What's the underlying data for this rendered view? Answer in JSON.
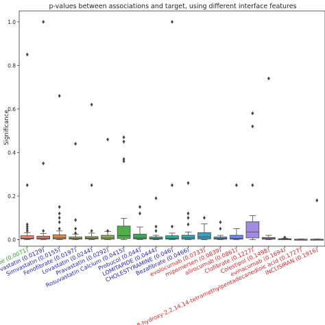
{
  "chart_data": {
    "type": "box",
    "title": "p-values between associations and target, using different interface features",
    "xlabel": "",
    "ylabel": "Significance",
    "ylim": [
      -0.03,
      1.05
    ],
    "yticks": [
      0.0,
      0.2,
      0.4,
      0.6,
      0.8,
      1.0
    ],
    "ytick_labels": [
      "0.0",
      "0.2",
      "0.4",
      "0.6",
      "0.8",
      "1.0"
    ],
    "grid": false,
    "categories": [
      {
        "label": "Ezetimibe (0.0071)",
        "color": "#2ca02c",
        "fill": "#e8866f",
        "box": {
          "q1": 0.003,
          "median": 0.006,
          "q3": 0.018,
          "wmin": 0.0,
          "wmax": 0.032
        },
        "outliers": [
          0.04,
          0.05,
          0.06,
          0.07,
          0.25,
          0.85
        ]
      },
      {
        "label": "Atorvastatin (0.0129)",
        "color": "#1f1fbf",
        "fill": "#e8866f",
        "box": {
          "q1": 0.002,
          "median": 0.007,
          "q3": 0.016,
          "wmin": 0.0,
          "wmax": 0.028
        },
        "outliers": [
          0.04,
          0.35,
          1.0
        ]
      },
      {
        "label": "Simvastatin (0.0155)",
        "color": "#1f1fbf",
        "fill": "#d9874f",
        "box": {
          "q1": 0.003,
          "median": 0.008,
          "q3": 0.022,
          "wmin": 0.0,
          "wmax": 0.04
        },
        "outliers": [
          0.05,
          0.08,
          0.1,
          0.12,
          0.15,
          0.66
        ]
      },
      {
        "label": "Fenofibrate (0.0197)",
        "color": "#1f1fbf",
        "fill": "#b0a35a",
        "box": {
          "q1": 0.002,
          "median": 0.006,
          "q3": 0.012,
          "wmin": 0.0,
          "wmax": 0.025
        },
        "outliers": [
          0.03,
          0.05,
          0.09,
          0.44
        ]
      },
      {
        "label": "Lovastatin (0.0244)",
        "color": "#1f1fbf",
        "fill": "#a3a85a",
        "box": {
          "q1": 0.003,
          "median": 0.007,
          "q3": 0.014,
          "wmin": 0.0,
          "wmax": 0.03
        },
        "outliers": [
          0.04,
          0.25,
          0.62
        ]
      },
      {
        "label": "Pravastatin (0.0292)",
        "color": "#1f1fbf",
        "fill": "#8fae57",
        "box": {
          "q1": 0.002,
          "median": 0.008,
          "q3": 0.02,
          "wmin": 0.0,
          "wmax": 0.038
        },
        "outliers": [
          0.04,
          0.46
        ]
      },
      {
        "label": "Rosuvastatin Calcium (0.0415)",
        "color": "#1f1fbf",
        "fill": "#4fb04a",
        "box": {
          "q1": 0.005,
          "median": 0.018,
          "q3": 0.062,
          "wmin": 0.0,
          "wmax": 0.098
        },
        "outliers": [
          0.36,
          0.37,
          0.45,
          0.47
        ]
      },
      {
        "label": "Probucol (0.044)",
        "color": "#1f1fbf",
        "fill": "#3aa858",
        "box": {
          "q1": 0.003,
          "median": 0.008,
          "q3": 0.025,
          "wmin": 0.0,
          "wmax": 0.058
        },
        "outliers": [
          0.12,
          0.15
        ]
      },
      {
        "label": "LOMITAPIDE (0.0444)",
        "color": "#1f1fbf",
        "fill": "#3aa88a",
        "box": {
          "q1": 0.002,
          "median": 0.005,
          "q3": 0.012,
          "wmin": 0.0,
          "wmax": 0.02
        },
        "outliers": [
          0.04,
          0.06,
          0.19
        ]
      },
      {
        "label": "CHOLESTYRAMINE (0.046)",
        "color": "#1f1fbf",
        "fill": "#3aa6a0",
        "box": {
          "q1": 0.002,
          "median": 0.006,
          "q3": 0.018,
          "wmin": 0.0,
          "wmax": 0.03
        },
        "outliers": [
          0.06,
          0.25,
          1.0
        ]
      },
      {
        "label": "Bezafibrate (0.0466)",
        "color": "#1f1fbf",
        "fill": "#38a8b0",
        "box": {
          "q1": 0.002,
          "median": 0.008,
          "q3": 0.02,
          "wmin": 0.0,
          "wmax": 0.035
        },
        "outliers": [
          0.07,
          0.1,
          0.12,
          0.26
        ]
      },
      {
        "label": "evolocumab (0.0733)",
        "color": "#d62728",
        "fill": "#3a9fc0",
        "box": {
          "q1": 0.003,
          "median": 0.012,
          "q3": 0.032,
          "wmin": 0.0,
          "wmax": 0.072
        },
        "outliers": [
          0.1
        ]
      },
      {
        "label": "mipomersen (0.0839)",
        "color": "#d62728",
        "fill": "#4d8fd0",
        "box": {
          "q1": 0.002,
          "median": 0.005,
          "q3": 0.012,
          "wmin": 0.0,
          "wmax": 0.02
        },
        "outliers": [
          0.05,
          0.08
        ]
      },
      {
        "label": "alirocumab (0.0861)",
        "color": "#d62728",
        "fill": "#6e8fdf",
        "box": {
          "q1": 0.002,
          "median": 0.006,
          "q3": 0.02,
          "wmin": 0.0,
          "wmax": 0.05
        },
        "outliers": [
          0.25
        ]
      },
      {
        "label": "Clofibrate (0.1227)",
        "color": "#d62728",
        "fill": "#a08de0",
        "box": {
          "q1": 0.008,
          "median": 0.035,
          "q3": 0.082,
          "wmin": 0.0,
          "wmax": 0.11
        },
        "outliers": [
          0.25,
          0.52,
          0.58
        ]
      },
      {
        "label": "Colestipol (0.1498)",
        "color": "#d62728",
        "fill": "#c48ad8",
        "box": {
          "q1": 0.002,
          "median": 0.005,
          "q3": 0.01,
          "wmin": 0.0,
          "wmax": 0.02
        },
        "outliers": [
          0.74
        ]
      },
      {
        "label": "evinacumab (0.1694)",
        "color": "#d62728",
        "fill": "#d98ac8",
        "box": {
          "q1": 0.0,
          "median": 0.002,
          "q3": 0.004,
          "wmin": 0.0,
          "wmax": 0.006
        },
        "outliers": [
          0.01
        ]
      },
      {
        "label": "8-hydroxy-2,2,14,14-tetramethylpentadecanedioic acid (0.1727)",
        "color": "#d62728",
        "fill": "#e08abf",
        "box": {
          "q1": 0.0,
          "median": 0.001,
          "q3": 0.002,
          "wmin": 0.0,
          "wmax": 0.003
        },
        "outliers": []
      },
      {
        "label": "INCLISIRAN (0.1916)",
        "color": "#d62728",
        "fill": "#e08ab0",
        "box": {
          "q1": 0.0,
          "median": 0.001,
          "q3": 0.002,
          "wmin": 0.0,
          "wmax": 0.003
        },
        "outliers": [
          0.18
        ]
      }
    ]
  }
}
